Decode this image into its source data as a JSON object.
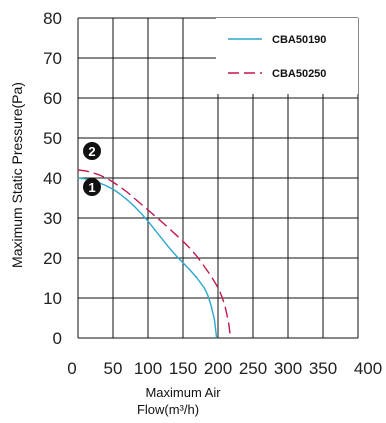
{
  "chart_data": {
    "type": "line",
    "xlabel": "Maximum Air Flow(m³/h)",
    "ylabel": "Maximum Static Pressure(Pa)",
    "xlim": [
      0,
      400
    ],
    "ylim": [
      0,
      80
    ],
    "xticks": [
      "0",
      "50",
      "100",
      "150",
      "200",
      "250",
      "300",
      "350",
      "400"
    ],
    "yticks": [
      "0",
      "10",
      "20",
      "30",
      "40",
      "50",
      "60",
      "70",
      "80"
    ],
    "grid": true,
    "legend": "top-right",
    "series": [
      {
        "name": "CBA50190",
        "marker": "1",
        "color": "#2aa7c9",
        "dash": "solid",
        "x": [
          0,
          10,
          20,
          30,
          40,
          50,
          60,
          70,
          80,
          90,
          100,
          110,
          120,
          130,
          140,
          150,
          160,
          170,
          180,
          185,
          190,
          195,
          198
        ],
        "y": [
          40,
          39.8,
          39.4,
          38.8,
          38.1,
          37.2,
          36,
          34.6,
          33,
          31.2,
          29.2,
          27,
          24.8,
          22.6,
          20.6,
          18.8,
          17,
          15,
          12.6,
          10.9,
          8.2,
          4.5,
          0
        ]
      },
      {
        "name": "CBA50250",
        "marker": "2",
        "color": "#c4184a",
        "dash": "dashed",
        "x": [
          0,
          10,
          20,
          30,
          40,
          50,
          60,
          70,
          80,
          90,
          100,
          110,
          120,
          130,
          140,
          150,
          160,
          170,
          180,
          190,
          200,
          205,
          210,
          215,
          218
        ],
        "y": [
          42,
          41.8,
          41.4,
          40.8,
          40,
          39,
          37.8,
          36.5,
          35,
          33.5,
          32,
          30.5,
          29,
          27.4,
          25.8,
          24.2,
          22.4,
          20.4,
          18,
          15.5,
          12.6,
          10.6,
          8,
          4,
          0
        ]
      }
    ]
  }
}
